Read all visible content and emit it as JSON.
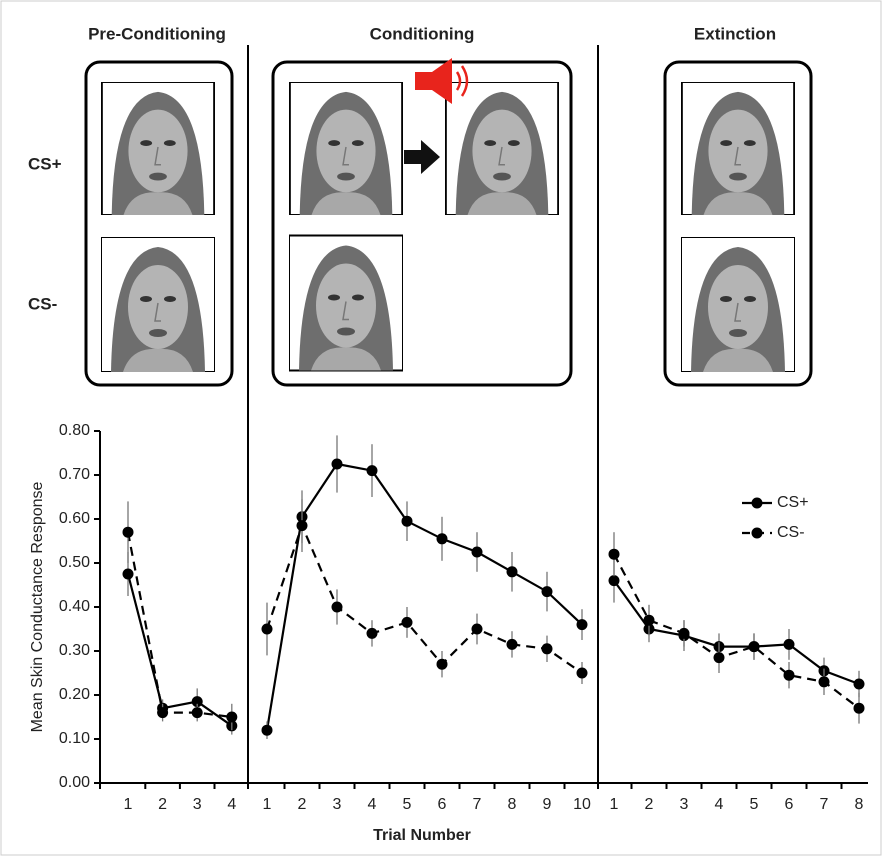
{
  "stimuli": {
    "rows": [
      "CS+",
      "CS-"
    ]
  },
  "chart_data": [
    {
      "type": "line",
      "title": "Pre-Conditioning",
      "ylabel": "Mean Skin Conductance Response",
      "categories": [
        "1",
        "2",
        "3",
        "4"
      ],
      "ylim": [
        0,
        0.8
      ],
      "yticks": [
        {
          "value": 0,
          "label": "0.00"
        },
        {
          "value": 0.1,
          "label": "0.10"
        },
        {
          "value": 0.2,
          "label": "0.20"
        },
        {
          "value": 0.3,
          "label": "0.30"
        },
        {
          "value": 0.4,
          "label": "0.40"
        },
        {
          "value": 0.5,
          "label": "0.50"
        },
        {
          "value": 0.6,
          "label": "0.60"
        },
        {
          "value": 0.7,
          "label": "0.70"
        },
        {
          "value": 0.8,
          "label": "0.80"
        }
      ],
      "series": [
        {
          "name": "CS+",
          "color": "#000000",
          "line_style": "solid",
          "values": [
            0.475,
            0.17,
            0.185,
            0.13
          ],
          "errors": [
            0.05,
            0.02,
            0.03,
            0.02
          ]
        },
        {
          "name": "CS-",
          "color": "#000000",
          "line_style": "dashed",
          "values": [
            0.57,
            0.16,
            0.16,
            0.15
          ],
          "errors": [
            0.07,
            0.02,
            0.02,
            0.03
          ]
        }
      ]
    },
    {
      "type": "line",
      "title": "Conditioning",
      "xlabel": "Trial Number",
      "categories": [
        "1",
        "2",
        "3",
        "4",
        "5",
        "6",
        "7",
        "8",
        "9",
        "10"
      ],
      "ylim": [
        0,
        0.8
      ],
      "series": [
        {
          "name": "CS+",
          "color": "#000000",
          "line_style": "solid",
          "values": [
            0.12,
            0.605,
            0.725,
            0.71,
            0.595,
            0.555,
            0.525,
            0.48,
            0.435,
            0.36
          ],
          "errors": [
            0.02,
            0.06,
            0.065,
            0.06,
            0.045,
            0.05,
            0.045,
            0.045,
            0.045,
            0.035
          ]
        },
        {
          "name": "CS-",
          "color": "#000000",
          "line_style": "dashed",
          "values": [
            0.35,
            0.585,
            0.4,
            0.34,
            0.365,
            0.27,
            0.35,
            0.315,
            0.305,
            0.25
          ],
          "errors": [
            0.06,
            0.06,
            0.04,
            0.03,
            0.035,
            0.03,
            0.035,
            0.03,
            0.03,
            0.025
          ]
        }
      ]
    },
    {
      "type": "line",
      "title": "Extinction",
      "legend": true,
      "categories": [
        "1",
        "2",
        "3",
        "4",
        "5",
        "6",
        "7",
        "8"
      ],
      "ylim": [
        0,
        0.8
      ],
      "series": [
        {
          "name": "CS+",
          "color": "#000000",
          "line_style": "solid",
          "values": [
            0.46,
            0.35,
            0.335,
            0.31,
            0.31,
            0.315,
            0.255,
            0.225
          ],
          "errors": [
            0.05,
            0.03,
            0.035,
            0.03,
            0.03,
            0.035,
            0.03,
            0.03
          ]
        },
        {
          "name": "CS-",
          "color": "#000000",
          "line_style": "dashed",
          "values": [
            0.52,
            0.37,
            0.34,
            0.285,
            0.31,
            0.245,
            0.23,
            0.17
          ],
          "errors": [
            0.05,
            0.035,
            0.03,
            0.035,
            0.03,
            0.03,
            0.03,
            0.035
          ]
        }
      ]
    }
  ]
}
